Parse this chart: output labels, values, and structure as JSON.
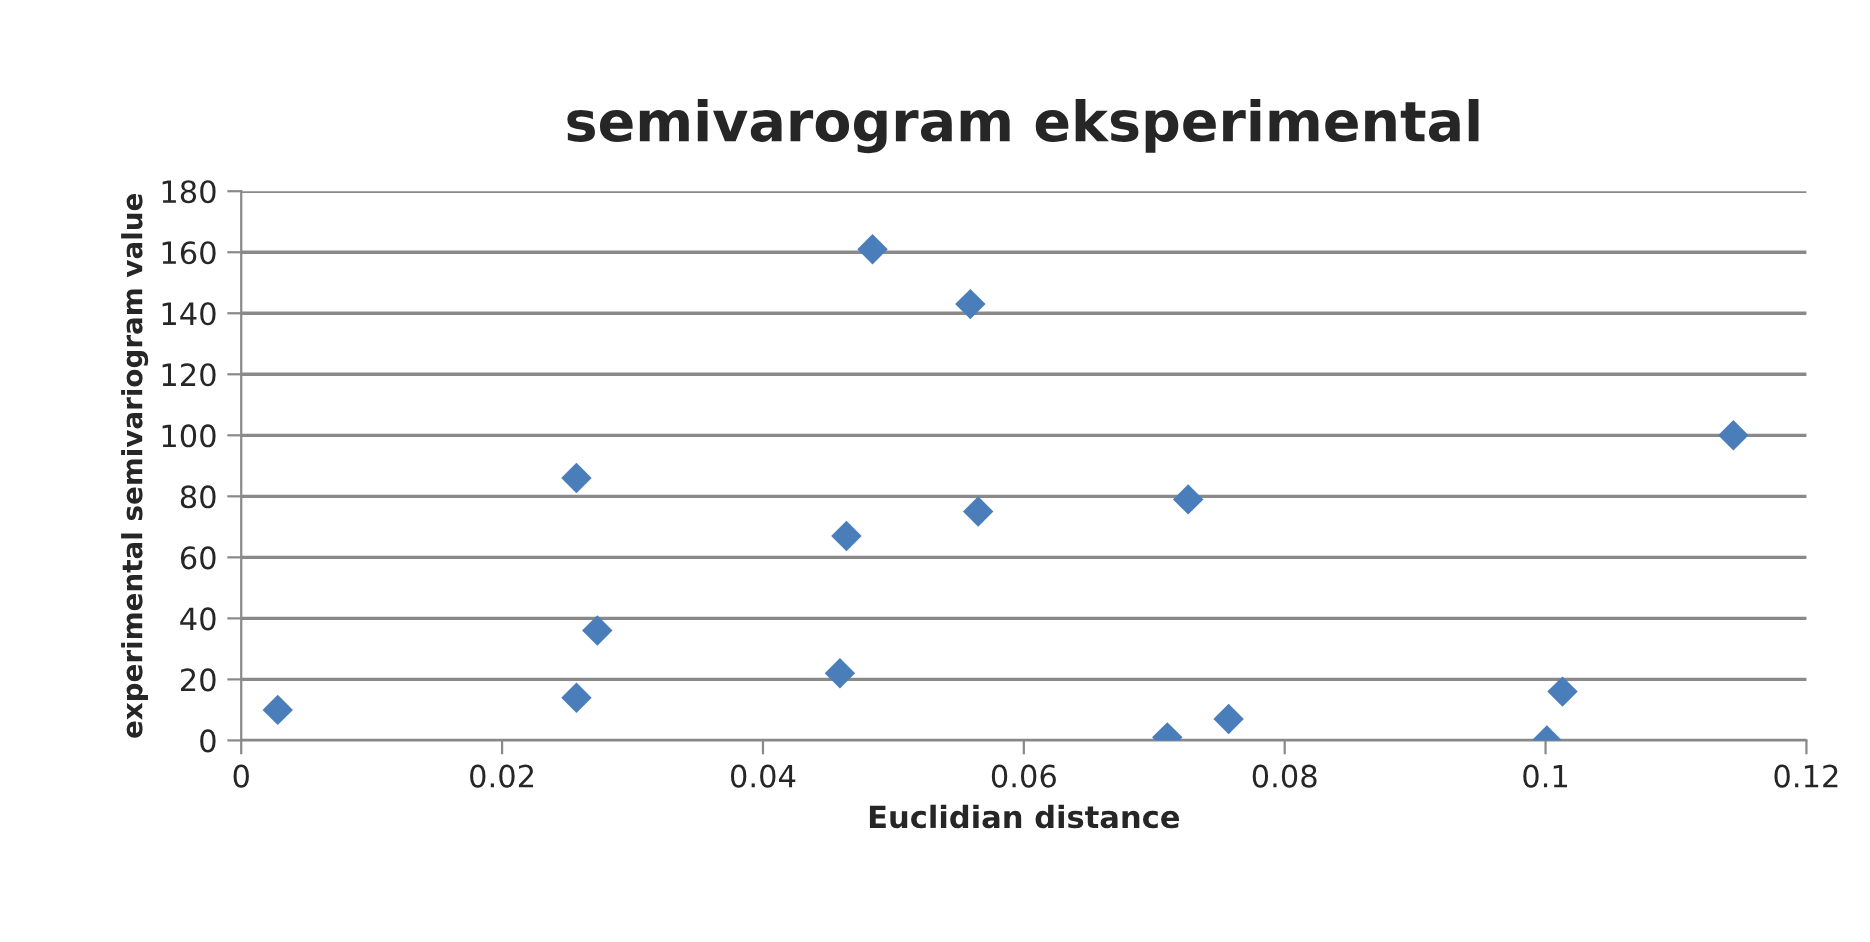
{
  "chart_data": {
    "type": "scatter",
    "title": "semivarogram eksperimental",
    "xlabel": "Euclidian distance",
    "ylabel": "experimental semivariogram value",
    "x": [
      0.0028,
      0.0257,
      0.0257,
      0.0273,
      0.0459,
      0.0464,
      0.0484,
      0.0559,
      0.0565,
      0.071,
      0.0726,
      0.0757,
      0.1001,
      0.1013,
      0.1144
    ],
    "series": [
      {
        "color": "#4a7ebb",
        "values": [
          10,
          86,
          14,
          36,
          22,
          67,
          161,
          143,
          75,
          1,
          79,
          7,
          0,
          16,
          100
        ]
      }
    ],
    "xlim": [
      0,
      0.12
    ],
    "xticks": [
      0,
      {
        "value": 0.02,
        "label": "0.02"
      },
      {
        "value": 0.04,
        "label": "0.04"
      },
      {
        "value": 0.06,
        "label": "0.06"
      },
      {
        "value": 0.08,
        "label": "0.08"
      },
      {
        "value": 0.1,
        "label": "0.1"
      },
      {
        "value": 0.12,
        "label": "0.12"
      }
    ],
    "ylim": [
      0,
      180
    ],
    "yticks": [
      0,
      20,
      40,
      60,
      80,
      100,
      120,
      140,
      160,
      180
    ],
    "grid": "y",
    "marker": "diamond",
    "legend": false
  }
}
